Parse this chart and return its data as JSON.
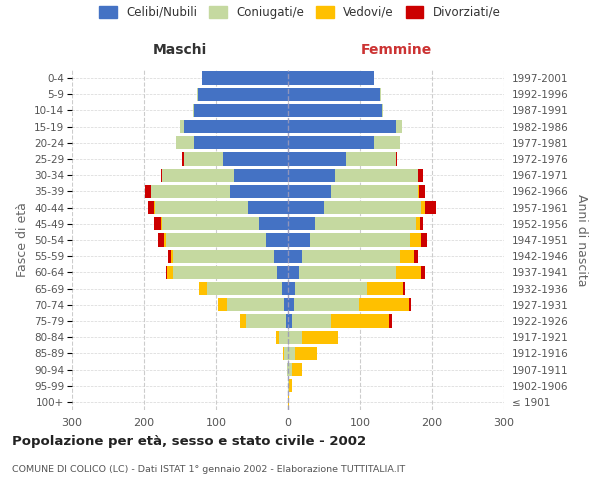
{
  "age_groups": [
    "100+",
    "95-99",
    "90-94",
    "85-89",
    "80-84",
    "75-79",
    "70-74",
    "65-69",
    "60-64",
    "55-59",
    "50-54",
    "45-49",
    "40-44",
    "35-39",
    "30-34",
    "25-29",
    "20-24",
    "15-19",
    "10-14",
    "5-9",
    "0-4"
  ],
  "birth_years": [
    "≤ 1901",
    "1902-1906",
    "1907-1911",
    "1912-1916",
    "1917-1921",
    "1922-1926",
    "1927-1931",
    "1932-1936",
    "1937-1941",
    "1942-1946",
    "1947-1951",
    "1952-1956",
    "1957-1961",
    "1962-1966",
    "1967-1971",
    "1972-1976",
    "1977-1981",
    "1982-1986",
    "1987-1991",
    "1992-1996",
    "1997-2001"
  ],
  "maschi": {
    "celibi": [
      0,
      0,
      0,
      0,
      0,
      3,
      5,
      8,
      15,
      20,
      30,
      40,
      55,
      80,
      75,
      90,
      130,
      145,
      130,
      125,
      120
    ],
    "coniugati": [
      0,
      0,
      2,
      5,
      12,
      55,
      80,
      105,
      145,
      140,
      140,
      135,
      130,
      110,
      100,
      55,
      25,
      5,
      2,
      1,
      0
    ],
    "vedovi": [
      0,
      0,
      0,
      2,
      5,
      8,
      12,
      10,
      8,
      2,
      2,
      1,
      1,
      0,
      0,
      0,
      0,
      0,
      0,
      0,
      0
    ],
    "divorziati": [
      0,
      0,
      0,
      0,
      0,
      0,
      0,
      0,
      2,
      5,
      8,
      10,
      8,
      8,
      2,
      2,
      0,
      0,
      0,
      0,
      0
    ]
  },
  "femmine": {
    "nubili": [
      0,
      0,
      0,
      0,
      0,
      5,
      8,
      10,
      15,
      20,
      30,
      38,
      50,
      60,
      65,
      80,
      120,
      150,
      130,
      128,
      120
    ],
    "coniugate": [
      0,
      2,
      5,
      10,
      20,
      55,
      90,
      100,
      135,
      135,
      140,
      140,
      135,
      120,
      115,
      70,
      35,
      8,
      2,
      1,
      0
    ],
    "vedove": [
      1,
      3,
      15,
      30,
      50,
      80,
      70,
      50,
      35,
      20,
      15,
      5,
      5,
      2,
      0,
      0,
      0,
      0,
      0,
      0,
      0
    ],
    "divorziate": [
      0,
      0,
      0,
      0,
      0,
      5,
      3,
      2,
      5,
      5,
      8,
      5,
      15,
      8,
      8,
      2,
      0,
      0,
      0,
      0,
      0
    ]
  },
  "colors": {
    "celibi_nubili": "#4472c4",
    "coniugati": "#c5d9a0",
    "vedovi": "#ffc000",
    "divorziati": "#cc0000"
  },
  "xlim": 300,
  "title": "Popolazione per età, sesso e stato civile - 2002",
  "subtitle": "COMUNE DI COLICO (LC) - Dati ISTAT 1° gennaio 2002 - Elaborazione TUTTITALIA.IT",
  "ylabel_left": "Fasce di età",
  "ylabel_right": "Anni di nascita",
  "xlabel_maschi": "Maschi",
  "xlabel_femmine": "Femmine",
  "legend_labels": [
    "Celibi/Nubili",
    "Coniugati/e",
    "Vedovi/e",
    "Divorziati/e"
  ],
  "background_color": "#ffffff",
  "grid_color": "#cccccc"
}
